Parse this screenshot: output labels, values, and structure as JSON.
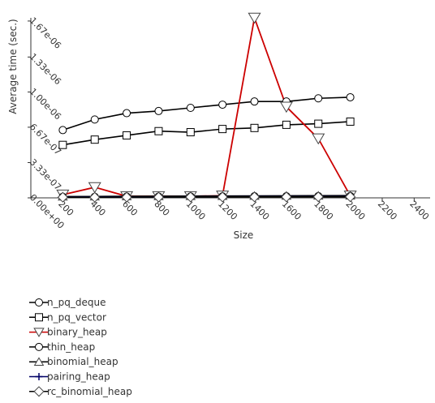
{
  "chart_data": {
    "type": "line",
    "xlabel": "Size",
    "ylabel": "Average time (sec.)",
    "x": [
      200,
      400,
      600,
      800,
      1000,
      1200,
      1400,
      1600,
      1800,
      2000
    ],
    "xlim": [
      0,
      2500
    ],
    "ylim": [
      0,
      1.7e-06
    ],
    "x_ticks": [
      200,
      400,
      600,
      800,
      1000,
      1200,
      1400,
      1600,
      1800,
      2000,
      2200,
      2400
    ],
    "x_tick_labels": [
      "200",
      "400",
      "600",
      "800",
      "1000",
      "1200",
      "1400",
      "1600",
      "1800",
      "2000",
      "2200",
      "2400"
    ],
    "y_ticks": [
      0,
      3.33e-07,
      6.67e-07,
      1e-06,
      1.33e-06,
      1.67e-06
    ],
    "y_tick_labels": [
      "0.00e+00",
      "3.33e-07",
      "6.67e-07",
      "1.00e-06",
      "1.33e-06",
      "1.67e-06"
    ],
    "grid": false,
    "legend_position": "bottom-left",
    "series": [
      {
        "name": "n_pq_deque",
        "marker": "circle",
        "color": "#000000",
        "values": [
          6.4e-07,
          7.4e-07,
          8e-07,
          8.2e-07,
          8.5e-07,
          8.8e-07,
          9.1e-07,
          9.1e-07,
          9.4e-07,
          9.5e-07
        ]
      },
      {
        "name": "n_pq_vector",
        "marker": "square",
        "color": "#000000",
        "values": [
          5e-07,
          5.5e-07,
          5.9e-07,
          6.3e-07,
          6.2e-07,
          6.5e-07,
          6.6e-07,
          6.9e-07,
          7e-07,
          7.2e-07
        ]
      },
      {
        "name": "binary_heap",
        "marker": "triangle-down",
        "color": "#cc0000",
        "values": [
          3e-08,
          1e-07,
          1.5e-08,
          1.5e-08,
          1.5e-08,
          2e-08,
          1.7e-06,
          8.6e-07,
          5.6e-07,
          2e-08
        ]
      },
      {
        "name": "thin_heap",
        "marker": "circle",
        "color": "#000000",
        "values": [
          1e-08,
          1e-08,
          1.2e-08,
          1.2e-08,
          1.3e-08,
          1.4e-08,
          1.5e-08,
          1.5e-08,
          1.6e-08,
          1.7e-08
        ]
      },
      {
        "name": "binomial_heap",
        "marker": "triangle-up",
        "color": "#000000",
        "values": [
          1.2e-08,
          1.3e-08,
          1.5e-08,
          1.6e-08,
          1.7e-08,
          1.8e-08,
          1.9e-08,
          2e-08,
          2.1e-08,
          2.2e-08
        ]
      },
      {
        "name": "pairing_heap",
        "marker": "plus",
        "color": "#000066",
        "values": [
          8e-09,
          8e-09,
          9e-09,
          9e-09,
          1e-08,
          1e-08,
          1.1e-08,
          1.1e-08,
          1.2e-08,
          1.2e-08
        ]
      },
      {
        "name": "rc_binomial_heap",
        "marker": "diamond",
        "color": "#000000",
        "values": [
          6e-09,
          6e-09,
          7e-09,
          7e-09,
          8e-09,
          8e-09,
          9e-09,
          9e-09,
          1e-08,
          1e-08
        ]
      }
    ]
  }
}
